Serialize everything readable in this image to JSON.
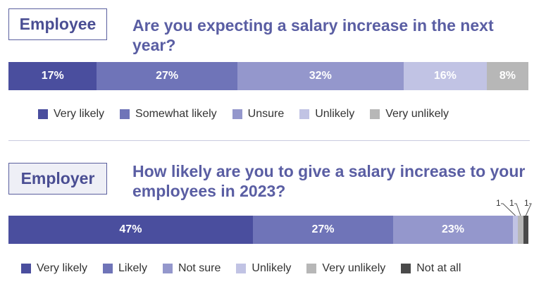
{
  "chart_data": [
    {
      "type": "bar",
      "orientation": "horizontal-stacked-100",
      "panel_label": "Employee",
      "title": "Are you expecting a salary increase in the next year?",
      "series": [
        {
          "name": "Very likely",
          "value": 17,
          "label": "17%",
          "color": "#4a4e9e"
        },
        {
          "name": "Somewhat likely",
          "value": 27,
          "label": "27%",
          "color": "#6f74b8"
        },
        {
          "name": "Unsure",
          "value": 32,
          "label": "32%",
          "color": "#9497cc"
        },
        {
          "name": "Unlikely",
          "value": 16,
          "label": "16%",
          "color": "#c1c3e4"
        },
        {
          "name": "Very unlikely",
          "value": 8,
          "label": "8%",
          "color": "#b7b7b7"
        }
      ],
      "legend_position": "bottom"
    },
    {
      "type": "bar",
      "orientation": "horizontal-stacked-100",
      "panel_label": "Employer",
      "title": "How likely are you to give a salary increase to your employees in 2023?",
      "series": [
        {
          "name": "Very likely",
          "value": 47,
          "label": "47%",
          "color": "#4a4e9e"
        },
        {
          "name": "Likely",
          "value": 27,
          "label": "27%",
          "color": "#6f74b8"
        },
        {
          "name": "Not sure",
          "value": 23,
          "label": "23%",
          "color": "#9497cc"
        },
        {
          "name": "Unlikely",
          "value": 1,
          "label": "1",
          "color": "#c1c3e4"
        },
        {
          "name": "Very unlikely",
          "value": 1,
          "label": "1",
          "color": "#b7b7b7"
        },
        {
          "name": "Not at all",
          "value": 1,
          "label": "1",
          "color": "#4a4a4a"
        }
      ],
      "legend_position": "bottom"
    }
  ]
}
